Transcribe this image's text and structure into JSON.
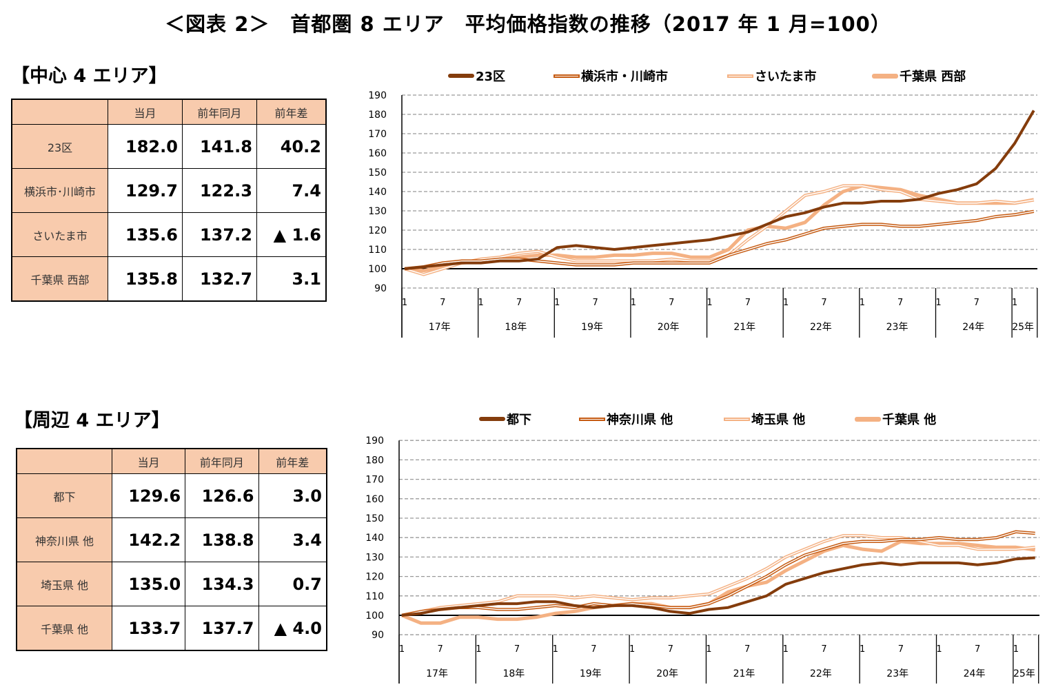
{
  "title": "＜図表 2＞　首都圏 8 エリア　平均価格指数の推移（2017 年 1 月=100）",
  "central": {
    "heading": "【中心 4 エリア】",
    "columns": [
      "",
      "当月",
      "前年同月",
      "前年差"
    ],
    "rows": [
      {
        "label": "23区",
        "current": "182.0",
        "prev_year": "141.8",
        "diff": "40.2"
      },
      {
        "label": "横浜市･川崎市",
        "current": "129.7",
        "prev_year": "122.3",
        "diff": "7.4"
      },
      {
        "label": "さいたま市",
        "current": "135.6",
        "prev_year": "137.2",
        "diff": "▲ 1.6"
      },
      {
        "label": "千葉県 西部",
        "current": "135.8",
        "prev_year": "132.7",
        "diff": "3.1"
      }
    ]
  },
  "peripheral": {
    "heading": "【周辺 4 エリア】",
    "columns": [
      "",
      "当月",
      "前年同月",
      "前年差"
    ],
    "rows": [
      {
        "label": "都下",
        "current": "129.6",
        "prev_year": "126.6",
        "diff": "3.0"
      },
      {
        "label": "神奈川県 他",
        "current": "142.2",
        "prev_year": "138.8",
        "diff": "3.4"
      },
      {
        "label": "埼玉県 他",
        "current": "135.0",
        "prev_year": "134.3",
        "diff": "0.7"
      },
      {
        "label": "千葉県 他",
        "current": "133.7",
        "prev_year": "137.7",
        "diff": "▲ 4.0"
      }
    ]
  },
  "chart_data": [
    {
      "type": "line",
      "ylim": [
        90,
        190
      ],
      "yticks": [
        90,
        100,
        110,
        120,
        130,
        140,
        150,
        160,
        170,
        180,
        190
      ],
      "grid": true,
      "legend_position": "top",
      "month_ticks": [
        "1",
        "7"
      ],
      "year_labels": [
        "17年",
        "18年",
        "19年",
        "20年",
        "21年",
        "22年",
        "23年",
        "24年",
        "25年"
      ],
      "x": [
        "2017-01",
        "2017-04",
        "2017-07",
        "2017-10",
        "2018-01",
        "2018-04",
        "2018-07",
        "2018-10",
        "2019-01",
        "2019-04",
        "2019-07",
        "2019-10",
        "2020-01",
        "2020-04",
        "2020-07",
        "2020-10",
        "2021-01",
        "2021-04",
        "2021-07",
        "2021-10",
        "2022-01",
        "2022-04",
        "2022-07",
        "2022-10",
        "2023-01",
        "2023-04",
        "2023-07",
        "2023-10",
        "2024-01",
        "2024-04",
        "2024-07",
        "2024-10",
        "2025-01",
        "2025-04"
      ],
      "series": [
        {
          "name": "23区",
          "style": "dark",
          "color": "#843c0c",
          "values": [
            100,
            101,
            102,
            103,
            103,
            104,
            104,
            105,
            111,
            112,
            111,
            110,
            111,
            112,
            113,
            114,
            115,
            117,
            119,
            123,
            127,
            129,
            132,
            134,
            134,
            135,
            135,
            136,
            139,
            141,
            144,
            152,
            165,
            182
          ]
        },
        {
          "name": "横浜市・川崎市",
          "style": "dbl-orange",
          "color": "#c55a11",
          "values": [
            100,
            101,
            103,
            104,
            104,
            105,
            105,
            104,
            103,
            102,
            102,
            102,
            103,
            103,
            103,
            103,
            103,
            107,
            110,
            113,
            115,
            118,
            121,
            122,
            123,
            123,
            122,
            122,
            123,
            124,
            125,
            127,
            128,
            129.7
          ]
        },
        {
          "name": "さいたま市",
          "style": "dbl-pale",
          "color": "#f4b183",
          "values": [
            100,
            97,
            100,
            103,
            105,
            106,
            108,
            109,
            106,
            104,
            104,
            104,
            104,
            104,
            105,
            104,
            104,
            107,
            115,
            122,
            130,
            138,
            140,
            143,
            143,
            141,
            140,
            136,
            135,
            134,
            134,
            135,
            134,
            135.6
          ]
        },
        {
          "name": "千葉県 西部",
          "style": "thick-pale",
          "color": "#f4b183",
          "values": [
            100,
            99,
            101,
            103,
            104,
            105,
            106,
            107,
            107,
            106,
            106,
            107,
            107,
            108,
            108,
            106,
            106,
            110,
            120,
            122,
            121,
            124,
            133,
            140,
            143,
            142,
            141,
            138,
            136,
            134,
            134,
            134,
            134,
            135.8
          ]
        }
      ]
    },
    {
      "type": "line",
      "ylim": [
        90,
        190
      ],
      "yticks": [
        90,
        100,
        110,
        120,
        130,
        140,
        150,
        160,
        170,
        180,
        190
      ],
      "grid": true,
      "legend_position": "top",
      "month_ticks": [
        "1",
        "7"
      ],
      "year_labels": [
        "17年",
        "18年",
        "19年",
        "20年",
        "21年",
        "22年",
        "23年",
        "24年",
        "25年"
      ],
      "x": [
        "2017-01",
        "2017-04",
        "2017-07",
        "2017-10",
        "2018-01",
        "2018-04",
        "2018-07",
        "2018-10",
        "2019-01",
        "2019-04",
        "2019-07",
        "2019-10",
        "2020-01",
        "2020-04",
        "2020-07",
        "2020-10",
        "2021-01",
        "2021-04",
        "2021-07",
        "2021-10",
        "2022-01",
        "2022-04",
        "2022-07",
        "2022-10",
        "2023-01",
        "2023-04",
        "2023-07",
        "2023-10",
        "2024-01",
        "2024-04",
        "2024-07",
        "2024-10",
        "2025-01",
        "2025-04"
      ],
      "series": [
        {
          "name": "都下",
          "style": "dark",
          "color": "#843c0c",
          "values": [
            100,
            101,
            103,
            104,
            105,
            106,
            106,
            107,
            107,
            105,
            104,
            105,
            105,
            104,
            102,
            101,
            103,
            104,
            107,
            110,
            116,
            119,
            122,
            124,
            126,
            127,
            126,
            127,
            127,
            127,
            126,
            127,
            129,
            129.6
          ]
        },
        {
          "name": "神奈川県 他",
          "style": "dbl-orange",
          "color": "#c55a11",
          "values": [
            100,
            102,
            103,
            104,
            104,
            103,
            103,
            104,
            105,
            104,
            106,
            105,
            106,
            105,
            104,
            104,
            106,
            110,
            115,
            120,
            126,
            131,
            134,
            137,
            138,
            138,
            139,
            139,
            140,
            139,
            139,
            140,
            143,
            142.2
          ]
        },
        {
          "name": "埼玉県 他",
          "style": "dbl-pale",
          "color": "#f4b183",
          "values": [
            100,
            102,
            104,
            105,
            106,
            107,
            110,
            110,
            110,
            109,
            110,
            109,
            108,
            109,
            109,
            110,
            111,
            115,
            119,
            124,
            130,
            134,
            138,
            141,
            141,
            140,
            140,
            138,
            136,
            136,
            134,
            134,
            134,
            135.0
          ]
        },
        {
          "name": "千葉県 他",
          "style": "thick-pale",
          "color": "#f4b183",
          "values": [
            100,
            96,
            96,
            99,
            99,
            98,
            98,
            99,
            101,
            102,
            104,
            105,
            106,
            106,
            104,
            104,
            106,
            112,
            115,
            117,
            123,
            128,
            133,
            136,
            134,
            133,
            138,
            137,
            137,
            137,
            136,
            135,
            135,
            133.7
          ]
        }
      ]
    }
  ]
}
